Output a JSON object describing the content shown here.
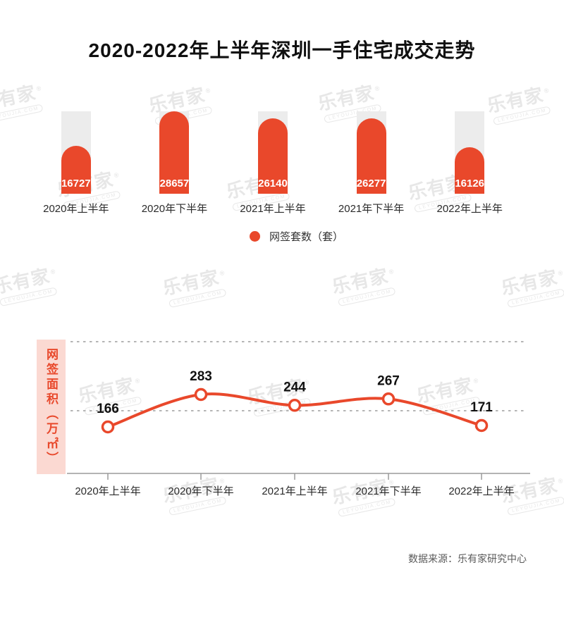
{
  "title": "2020-2022年上半年深圳一手住宅成交走势",
  "watermark": {
    "text": "乐有家",
    "registered": "®",
    "sub": "LEYOUJIA.COM"
  },
  "source": "数据来源：乐有家研究中心",
  "colors": {
    "primary": "#E9482B",
    "bar_track": "#ECECEC",
    "ylabel_bg": "#FBD9D2",
    "grid": "#B5B5B5",
    "axis": "#9A9A9A",
    "text": "#2B2B2B",
    "watermark": "#E7E7E7"
  },
  "chart_data": [
    {
      "type": "bar",
      "title": "网签套数（套）",
      "legend_label": "网签套数（套）",
      "categories": [
        "2020年上半年",
        "2020年下半年",
        "2021年上半年",
        "2021年下半年",
        "2022年上半年"
      ],
      "values": [
        16727,
        28657,
        26140,
        26277,
        16126
      ],
      "ylim": [
        0,
        28657
      ],
      "grid": false,
      "legend_position": "bottom",
      "bar_color": "#E9482B",
      "value_label_color": "#FFFFFF"
    },
    {
      "type": "line",
      "ylabel": "网签面积（万㎡）",
      "categories": [
        "2020年上半年",
        "2020年下半年",
        "2021年上半年",
        "2021年下半年",
        "2022年上半年"
      ],
      "values": [
        166,
        283,
        244,
        267,
        171
      ],
      "line_color": "#E9482B",
      "marker": "open-circle",
      "grid": "dashed-horizontal",
      "value_label_color": "#111111"
    }
  ]
}
